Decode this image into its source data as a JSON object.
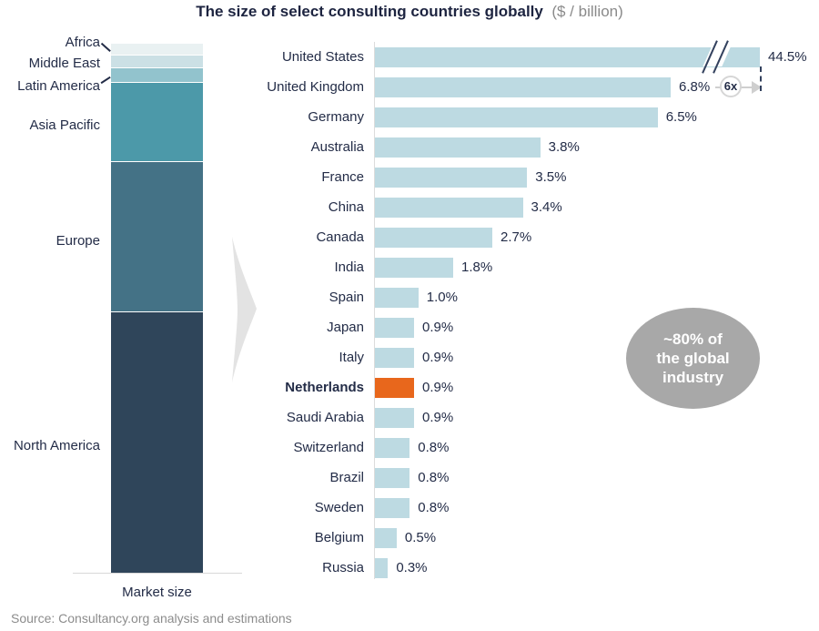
{
  "title": {
    "main": "The size of select consulting countries globally",
    "unit": "($ / billion)"
  },
  "source": "Source: Consultancy.org analysis and estimations",
  "colors": {
    "bar_light_blue": "#bddae2",
    "bar_highlight_orange": "#e8671c",
    "text_navy": "#232c47",
    "text_gray": "#8a8a8a",
    "ellipse_gray": "#a8a8a8",
    "axis_gray": "#dcdcdc",
    "chevron_gray": "#e3e3e3"
  },
  "chart_data": [
    {
      "type": "bar",
      "subtype": "stacked-vertical-single-column",
      "title": "Market size",
      "xlabel": "Market size",
      "categories": [
        "Africa",
        "Middle East",
        "Latin America",
        "Asia Pacific",
        "Europe",
        "North America"
      ],
      "series": [
        {
          "name": "Share of market size (estimated from segment heights, %)",
          "values": [
            2.2,
            2.4,
            2.75,
            15.0,
            28.4,
            49.25
          ]
        }
      ],
      "segment_colors": [
        "#e9f1f2",
        "#cbe0e5",
        "#92c3cd",
        "#4c99a9",
        "#447286",
        "#2f455a"
      ],
      "legend": "none",
      "grid": false
    },
    {
      "type": "bar",
      "subtype": "horizontal",
      "categories": [
        "United States",
        "United Kingdom",
        "Germany",
        "Australia",
        "France",
        "China",
        "Canada",
        "India",
        "Spain",
        "Japan",
        "Italy",
        "Netherlands",
        "Saudi Arabia",
        "Switzerland",
        "Brazil",
        "Sweden",
        "Belgium",
        "Russia"
      ],
      "values": [
        44.5,
        6.8,
        6.5,
        3.8,
        3.5,
        3.4,
        2.7,
        1.8,
        1.0,
        0.9,
        0.9,
        0.9,
        0.9,
        0.8,
        0.8,
        0.8,
        0.5,
        0.3
      ],
      "value_labels": [
        "44.5%",
        "6.8%",
        "6.5%",
        "3.8%",
        "3.5%",
        "3.4%",
        "2.7%",
        "1.8%",
        "1.0%",
        "0.9%",
        "0.9%",
        "0.9%",
        "0.9%",
        "0.8%",
        "0.8%",
        "0.8%",
        "0.5%",
        "0.3%"
      ],
      "highlight_category": "Netherlands",
      "axis_break_on": "United States",
      "scale_note": "6x",
      "annotation": {
        "text": "~80% of the global industry",
        "lines": [
          "~80% of",
          "the global",
          "industry"
        ]
      },
      "legend": "none",
      "grid": false
    }
  ]
}
